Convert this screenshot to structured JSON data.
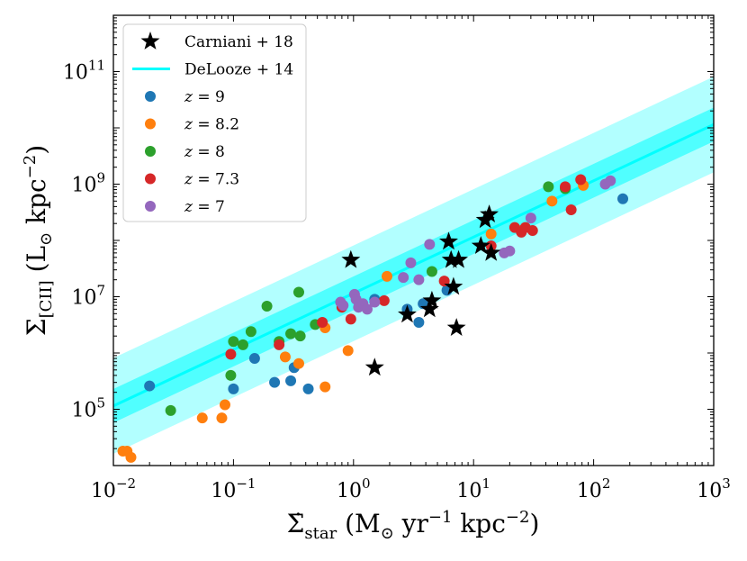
{
  "chart_data": {
    "type": "scatter",
    "xscale": "log",
    "yscale": "log",
    "xlim": [
      0.01,
      1000
    ],
    "ylim": [
      10000,
      1000000000000
    ],
    "x_ticks": [
      {
        "value": 0.01,
        "base": "10",
        "exp": "−2"
      },
      {
        "value": 0.1,
        "base": "10",
        "exp": "−1"
      },
      {
        "value": 1,
        "base": "10",
        "exp": "0"
      },
      {
        "value": 10,
        "base": "10",
        "exp": "1"
      },
      {
        "value": 100,
        "base": "10",
        "exp": "2"
      },
      {
        "value": 1000,
        "base": "10",
        "exp": "3"
      }
    ],
    "y_ticks": [
      {
        "value": 100000,
        "base": "10",
        "exp": "5"
      },
      {
        "value": 10000000,
        "base": "10",
        "exp": "7"
      },
      {
        "value": 1000000000,
        "base": "10",
        "exp": "9"
      },
      {
        "value": 100000000000,
        "base": "10",
        "exp": "11"
      }
    ],
    "xlabel": {
      "main": "Σ̇",
      "sub": "star",
      "units": " (M",
      "odot": "⊙",
      "yr": " yr",
      "yr_exp": "−1",
      "kpc": " kpc",
      "kpc_exp": "−2",
      "close": ")"
    },
    "ylabel": {
      "main": "Σ",
      "sub": "[CII]",
      "units": " (L",
      "odot": "⊙",
      "kpc": " kpc",
      "kpc_exp": "−2",
      "close": ")"
    },
    "relation": {
      "name": "DeLooze + 14",
      "color": "#00ffff",
      "slope": 1.0,
      "intercept": 7.06,
      "inner_band": 0.3,
      "outer_band": 0.85
    },
    "series": [
      {
        "name": "Carniani + 18",
        "marker": "star",
        "color": "#000000",
        "points": [
          [
            0.95,
            45000000
          ],
          [
            1.5,
            550000
          ],
          [
            2.8,
            4800000
          ],
          [
            4.3,
            6000000
          ],
          [
            4.5,
            8500000
          ],
          [
            6.2,
            95000000
          ],
          [
            6.5,
            45000000
          ],
          [
            6.8,
            15000000
          ],
          [
            7.2,
            2800000
          ],
          [
            7.5,
            45000000
          ],
          [
            11.5,
            80000000
          ],
          [
            12.5,
            230000000
          ],
          [
            13.5,
            290000000
          ],
          [
            14,
            60000000
          ]
        ]
      },
      {
        "name": "z = 9",
        "label_var": "z",
        "label_val": "9",
        "marker": "circle",
        "color": "#1f77b4",
        "points": [
          [
            0.02,
            260000
          ],
          [
            0.1,
            230000
          ],
          [
            0.15,
            800000
          ],
          [
            0.22,
            300000
          ],
          [
            0.3,
            320000
          ],
          [
            0.32,
            550000
          ],
          [
            0.42,
            230000
          ],
          [
            1.5,
            9000000
          ],
          [
            2.8,
            6000000
          ],
          [
            3.5,
            3500000
          ],
          [
            3.8,
            7500000
          ],
          [
            6,
            13000000
          ],
          [
            175,
            550000000
          ]
        ]
      },
      {
        "name": "z = 8.2",
        "label_var": "z",
        "label_val": "8.2",
        "marker": "circle",
        "color": "#ff7f0e",
        "points": [
          [
            0.012,
            18000
          ],
          [
            0.013,
            18000
          ],
          [
            0.014,
            14000
          ],
          [
            0.055,
            70000
          ],
          [
            0.08,
            70000
          ],
          [
            0.085,
            120000
          ],
          [
            0.27,
            850000
          ],
          [
            0.35,
            650000
          ],
          [
            0.58,
            250000
          ],
          [
            0.58,
            2800000
          ],
          [
            0.9,
            1100000
          ],
          [
            1.9,
            23000000
          ],
          [
            14,
            130000000
          ],
          [
            25,
            150000000
          ],
          [
            45,
            500000000
          ],
          [
            82,
            950000000
          ]
        ]
      },
      {
        "name": "z = 8",
        "label_var": "z",
        "label_val": "8",
        "marker": "circle",
        "color": "#2ca02c",
        "points": [
          [
            0.03,
            95000
          ],
          [
            0.095,
            400000
          ],
          [
            0.1,
            1600000
          ],
          [
            0.12,
            1400000
          ],
          [
            0.14,
            2400000
          ],
          [
            0.19,
            6800000
          ],
          [
            0.24,
            1600000
          ],
          [
            0.3,
            2200000
          ],
          [
            0.35,
            12000000
          ],
          [
            0.36,
            2000000
          ],
          [
            0.48,
            3200000
          ],
          [
            4.5,
            28000000
          ],
          [
            42,
            900000000
          ],
          [
            58,
            830000000
          ]
        ]
      },
      {
        "name": "z = 7.3",
        "label_var": "z",
        "label_val": "7.3",
        "marker": "circle",
        "color": "#d62728",
        "points": [
          [
            0.095,
            950000
          ],
          [
            0.24,
            1400000
          ],
          [
            0.55,
            3500000
          ],
          [
            0.8,
            6500000
          ],
          [
            0.95,
            4000000
          ],
          [
            1.8,
            8500000
          ],
          [
            5.7,
            19000000
          ],
          [
            14,
            80000000
          ],
          [
            22,
            170000000
          ],
          [
            25,
            140000000
          ],
          [
            27,
            170000000
          ],
          [
            31,
            150000000
          ],
          [
            58,
            900000000
          ],
          [
            65,
            350000000
          ],
          [
            78,
            1200000000
          ]
        ]
      },
      {
        "name": "z = 7",
        "label_var": "z",
        "label_val": "7",
        "marker": "circle",
        "color": "#9467bd",
        "points": [
          [
            0.78,
            8000000
          ],
          [
            0.82,
            7000000
          ],
          [
            1.02,
            11000000
          ],
          [
            1.05,
            9000000
          ],
          [
            1.1,
            6500000
          ],
          [
            1.2,
            7500000
          ],
          [
            1.3,
            6000000
          ],
          [
            1.5,
            8000000
          ],
          [
            2.6,
            22000000
          ],
          [
            3,
            40000000
          ],
          [
            3.5,
            20000000
          ],
          [
            4.3,
            85000000
          ],
          [
            18,
            60000000
          ],
          [
            20,
            65000000
          ],
          [
            30,
            250000000
          ],
          [
            125,
            1000000000
          ],
          [
            138,
            1150000000
          ]
        ]
      }
    ]
  }
}
